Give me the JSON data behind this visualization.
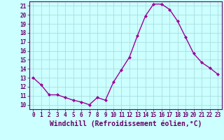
{
  "x": [
    0,
    1,
    2,
    3,
    4,
    5,
    6,
    7,
    8,
    9,
    10,
    11,
    12,
    13,
    14,
    15,
    16,
    17,
    18,
    19,
    20,
    21,
    22,
    23
  ],
  "y": [
    13,
    12.2,
    11.1,
    11.1,
    10.8,
    10.5,
    10.3,
    10.0,
    10.8,
    10.5,
    12.5,
    13.9,
    15.3,
    17.7,
    19.9,
    21.2,
    21.2,
    20.6,
    19.3,
    17.5,
    15.7,
    14.7,
    14.1,
    13.4
  ],
  "line_color": "#990099",
  "marker": "D",
  "marker_size": 2,
  "bg_color": "#ccffff",
  "grid_color": "#aadddd",
  "xlabel": "Windchill (Refroidissement éolien,°C)",
  "ylabel": "",
  "xlim": [
    -0.5,
    23.5
  ],
  "ylim": [
    9.5,
    21.5
  ],
  "yticks": [
    10,
    11,
    12,
    13,
    14,
    15,
    16,
    17,
    18,
    19,
    20,
    21
  ],
  "xticks": [
    0,
    1,
    2,
    3,
    4,
    5,
    6,
    7,
    8,
    9,
    10,
    11,
    12,
    13,
    14,
    15,
    16,
    17,
    18,
    19,
    20,
    21,
    22,
    23
  ],
  "tick_label_fontsize": 5.5,
  "xlabel_fontsize": 7.0,
  "line_width": 1.0,
  "axes_color": "#660066",
  "spine_color": "#660066"
}
